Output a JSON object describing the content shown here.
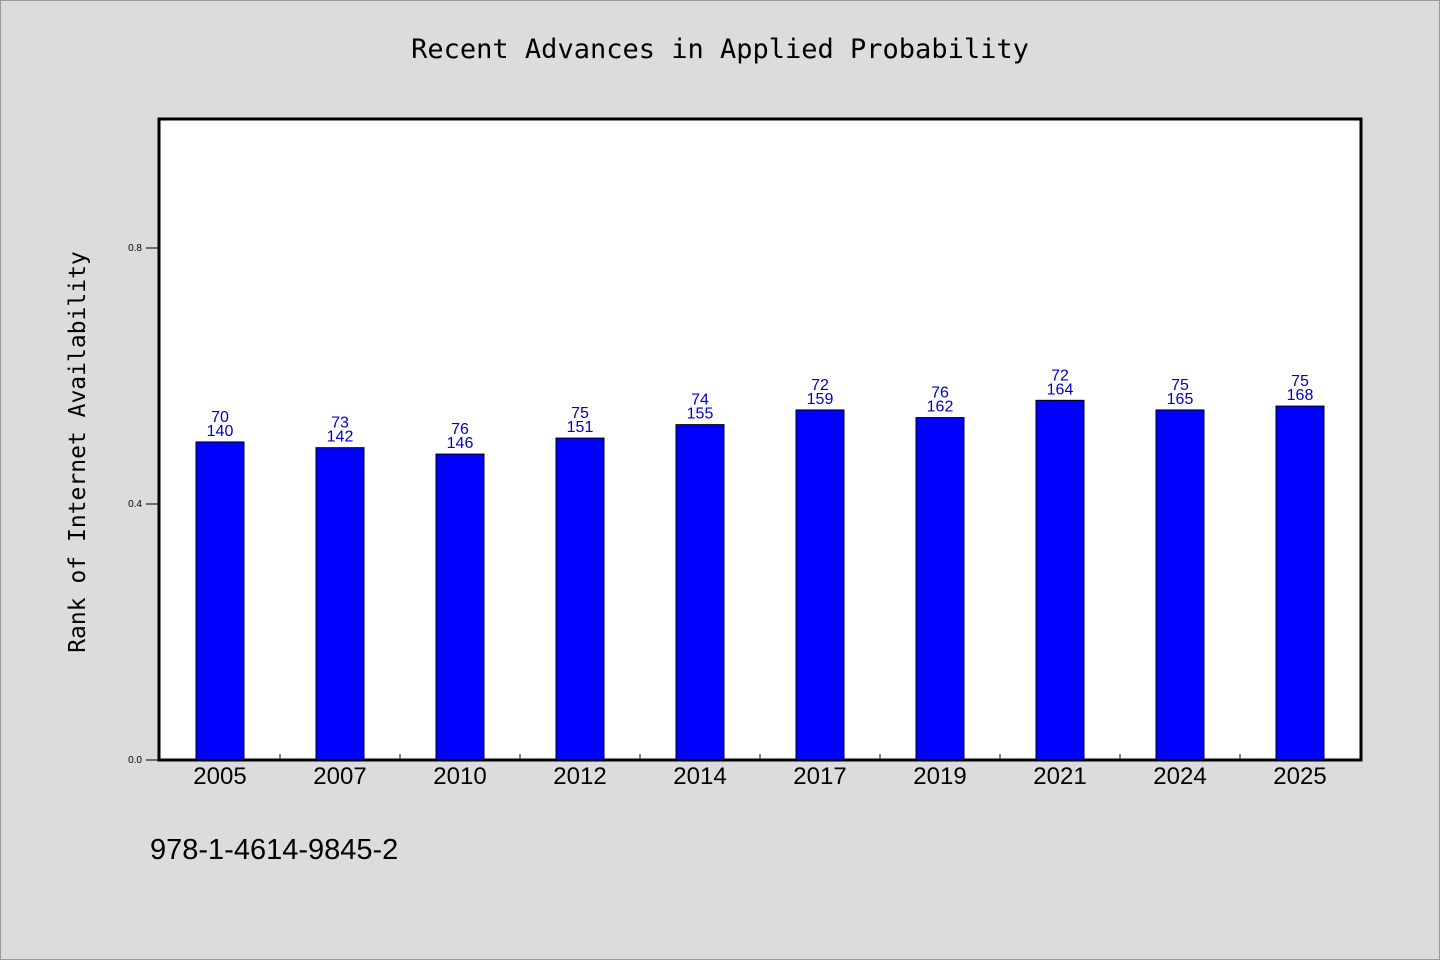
{
  "title": "Recent Advances in Applied Probability",
  "ylabel": "Rank of Internet Availability",
  "footer_text": "978-1-4614-9845-2",
  "chart_data": {
    "type": "bar",
    "title": "Recent Advances in Applied Probability",
    "xlabel": "",
    "ylabel": "Rank of Internet Availability",
    "categories": [
      "2005",
      "2007",
      "2010",
      "2012",
      "2014",
      "2017",
      "2019",
      "2021",
      "2024",
      "2025"
    ],
    "values": [
      0.497,
      0.488,
      0.478,
      0.503,
      0.524,
      0.547,
      0.535,
      0.562,
      0.547,
      0.553
    ],
    "labels_top": [
      "70",
      "73",
      "76",
      "75",
      "74",
      "72",
      "76",
      "72",
      "75",
      "75"
    ],
    "labels_bottom": [
      "140",
      "142",
      "146",
      "151",
      "155",
      "159",
      "162",
      "164",
      "165",
      "168"
    ],
    "yticks": [
      "0.0",
      "0.4",
      "0.8"
    ],
    "ytick_values": [
      0.0,
      0.4,
      0.8
    ],
    "ylim": [
      0,
      1.0
    ],
    "bar_color": "#0000ff",
    "label_color": "#0000cc",
    "grid": false,
    "legend": "none"
  }
}
